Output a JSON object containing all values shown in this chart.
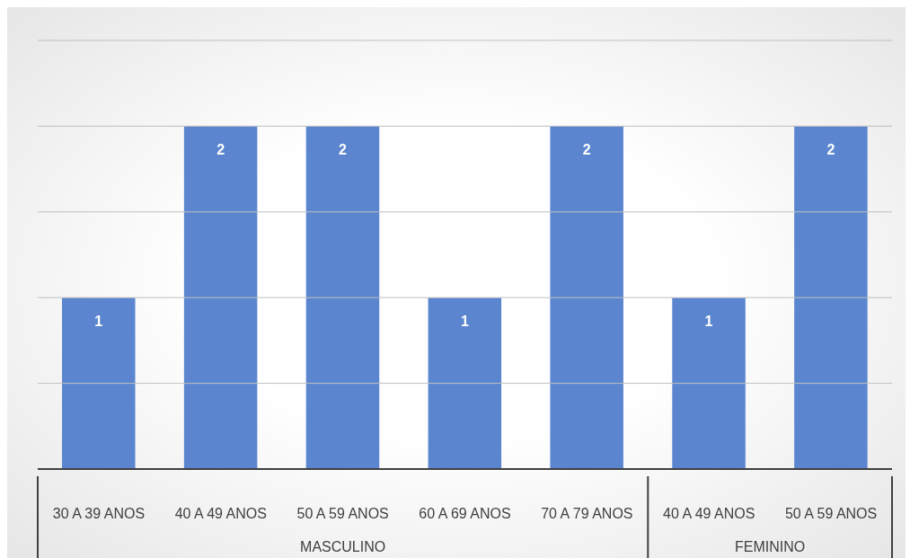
{
  "chart_data": {
    "type": "bar",
    "categories": [
      "30 A 39 ANOS",
      "40 A 49 ANOS",
      "50 A 59 ANOS",
      "60 A 69 ANOS",
      "70 A 79 ANOS",
      "40 A 49 ANOS",
      "50 A 59 ANOS"
    ],
    "values": [
      1,
      2,
      2,
      1,
      2,
      1,
      2
    ],
    "color": "#5b86cf",
    "ylim": [
      0,
      2.5
    ],
    "yticks": [
      {
        "value": 0.5,
        "label": null
      },
      {
        "value": 1,
        "label": null
      },
      {
        "value": 1.5,
        "label": null
      },
      {
        "value": 2,
        "label": null
      },
      {
        "value": 2.5,
        "label": null
      }
    ],
    "grid": "y",
    "tick_labels": "x",
    "data_labels": true,
    "annotations": [
      "MASCULINO",
      "FEMININO"
    ]
  }
}
